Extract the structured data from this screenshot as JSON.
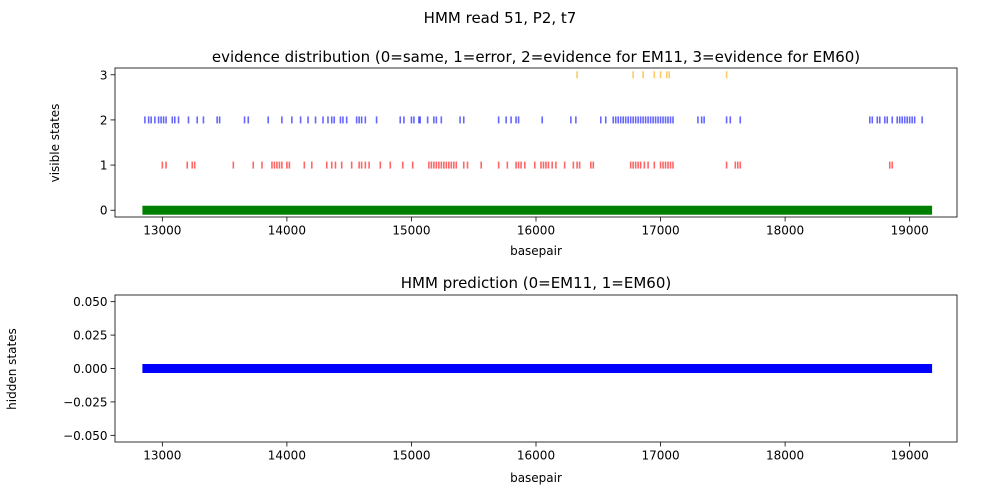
{
  "figure": {
    "suptitle": "HMM read 51, P2, t7"
  },
  "chart_data": [
    {
      "type": "scatter",
      "marker": "vertical-tick",
      "title": "evidence distribution (0=same, 1=error, 2=evidence for EM11, 3=evidence for EM60)",
      "xlabel": "basepair",
      "ylabel": "visible states",
      "xlim": [
        12620,
        19380
      ],
      "ylim": [
        -0.15,
        3.15
      ],
      "xticks": [
        13000,
        14000,
        15000,
        16000,
        17000,
        18000,
        19000
      ],
      "yticks": [
        0,
        1,
        2,
        3
      ],
      "grid": false,
      "series": [
        {
          "state": 0,
          "color": "#008000",
          "continuous": true,
          "x": [
            12840,
            19180
          ]
        },
        {
          "state": 1,
          "color": "#ff0000",
          "x": [
            13000,
            13030,
            13200,
            13240,
            13260,
            13570,
            13730,
            13800,
            13880,
            13900,
            13920,
            13940,
            13960,
            14000,
            14020,
            14140,
            14200,
            14320,
            14360,
            14390,
            14440,
            14520,
            14580,
            14600,
            14630,
            14660,
            14750,
            14830,
            14930,
            15010,
            15140,
            15160,
            15180,
            15200,
            15220,
            15240,
            15260,
            15280,
            15300,
            15320,
            15340,
            15360,
            15420,
            15450,
            15560,
            15700,
            15770,
            15840,
            15860,
            15880,
            15910,
            15990,
            16040,
            16060,
            16080,
            16100,
            16130,
            16160,
            16230,
            16300,
            16330,
            16350,
            16440,
            16460,
            16760,
            16780,
            16800,
            16820,
            16840,
            16870,
            16900,
            16950,
            17000,
            17020,
            17040,
            17060,
            17080,
            17100,
            17530,
            17600,
            17620,
            17640,
            18840,
            18860
          ]
        },
        {
          "state": 2,
          "color": "#0000ff",
          "x": [
            12860,
            12890,
            12910,
            12940,
            12970,
            12990,
            13010,
            13030,
            13080,
            13100,
            13130,
            13210,
            13280,
            13330,
            13440,
            13460,
            13660,
            13690,
            13850,
            13960,
            14040,
            14110,
            14170,
            14230,
            14290,
            14330,
            14360,
            14380,
            14430,
            14450,
            14480,
            14560,
            14580,
            14600,
            14630,
            14720,
            14910,
            14940,
            15000,
            15020,
            15060,
            15070,
            15130,
            15180,
            15200,
            15240,
            15390,
            15420,
            15700,
            15760,
            15800,
            15840,
            15860,
            16050,
            16280,
            16320,
            16520,
            16560,
            16620,
            16640,
            16660,
            16680,
            16700,
            16720,
            16740,
            16760,
            16780,
            16800,
            16820,
            16840,
            16860,
            16880,
            16900,
            16920,
            16940,
            16960,
            16980,
            17000,
            17020,
            17040,
            17060,
            17080,
            17100,
            17300,
            17330,
            17350,
            17530,
            17560,
            17640,
            18680,
            18700,
            18740,
            18760,
            18800,
            18820,
            18860,
            18900,
            18920,
            18940,
            18960,
            18980,
            19000,
            19020,
            19040,
            19100
          ]
        },
        {
          "state": 3,
          "color": "#ffa500",
          "x": [
            16330,
            16780,
            16860,
            16950,
            17000,
            17050,
            17070,
            17530
          ]
        }
      ]
    },
    {
      "type": "scatter",
      "marker": "vertical-tick",
      "title": "HMM prediction (0=EM11, 1=EM60)",
      "xlabel": "basepair",
      "ylabel": "hidden states",
      "xlim": [
        12620,
        19380
      ],
      "ylim": [
        -0.055,
        0.055
      ],
      "xticks": [
        13000,
        14000,
        15000,
        16000,
        17000,
        18000,
        19000
      ],
      "yticks": [
        -0.05,
        -0.025,
        0,
        0.025,
        0.05
      ],
      "ytick_labels": [
        "−0.050",
        "−0.025",
        "0.000",
        "0.025",
        "0.050"
      ],
      "grid": false,
      "series": [
        {
          "state": 0,
          "color": "#0000ff",
          "continuous": true,
          "x": [
            12840,
            19180
          ]
        }
      ]
    }
  ]
}
